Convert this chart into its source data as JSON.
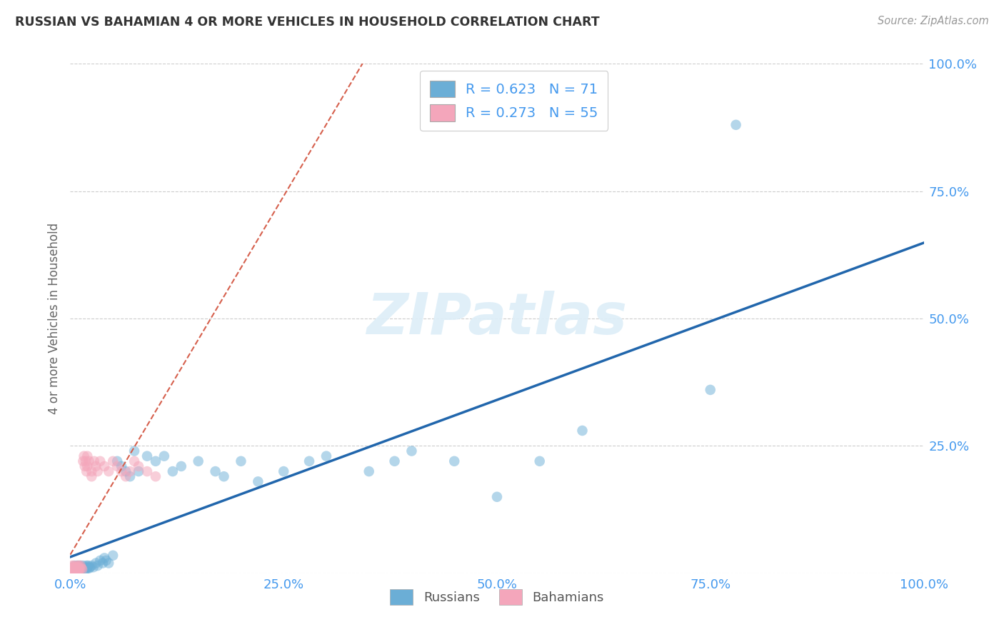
{
  "title": "RUSSIAN VS BAHAMIAN 4 OR MORE VEHICLES IN HOUSEHOLD CORRELATION CHART",
  "source": "Source: ZipAtlas.com",
  "ylabel": "4 or more Vehicles in Household",
  "russian_R": 0.623,
  "russian_N": 71,
  "bahamian_R": 0.273,
  "bahamian_N": 55,
  "russian_color": "#6baed6",
  "bahamian_color": "#f4a6bb",
  "russian_line_color": "#2166ac",
  "bahamian_line_color": "#d6604d",
  "watermark_color": "#ddeef8",
  "grid_color": "#cccccc",
  "tick_color": "#4499ee",
  "title_color": "#333333",
  "source_color": "#999999",
  "ylabel_color": "#666666",
  "xlim": [
    0.0,
    1.0
  ],
  "ylim": [
    0.0,
    1.0
  ],
  "russian_x": [
    0.002,
    0.003,
    0.004,
    0.005,
    0.005,
    0.006,
    0.006,
    0.007,
    0.007,
    0.008,
    0.008,
    0.009,
    0.009,
    0.01,
    0.01,
    0.01,
    0.011,
    0.011,
    0.012,
    0.012,
    0.013,
    0.014,
    0.015,
    0.015,
    0.016,
    0.017,
    0.018,
    0.019,
    0.02,
    0.02,
    0.021,
    0.022,
    0.023,
    0.025,
    0.027,
    0.03,
    0.032,
    0.035,
    0.038,
    0.04,
    0.042,
    0.045,
    0.05,
    0.055,
    0.06,
    0.065,
    0.07,
    0.075,
    0.08,
    0.09,
    0.1,
    0.11,
    0.12,
    0.13,
    0.15,
    0.17,
    0.18,
    0.2,
    0.22,
    0.25,
    0.28,
    0.3,
    0.35,
    0.38,
    0.4,
    0.45,
    0.5,
    0.55,
    0.6,
    0.75,
    0.78
  ],
  "russian_y": [
    0.005,
    0.01,
    0.008,
    0.015,
    0.005,
    0.01,
    0.008,
    0.012,
    0.006,
    0.01,
    0.015,
    0.008,
    0.012,
    0.01,
    0.015,
    0.005,
    0.012,
    0.008,
    0.01,
    0.015,
    0.01,
    0.008,
    0.015,
    0.01,
    0.012,
    0.01,
    0.008,
    0.015,
    0.01,
    0.012,
    0.015,
    0.01,
    0.012,
    0.015,
    0.012,
    0.02,
    0.015,
    0.025,
    0.02,
    0.03,
    0.025,
    0.02,
    0.035,
    0.22,
    0.21,
    0.2,
    0.19,
    0.24,
    0.2,
    0.23,
    0.22,
    0.23,
    0.2,
    0.21,
    0.22,
    0.2,
    0.19,
    0.22,
    0.18,
    0.2,
    0.22,
    0.23,
    0.2,
    0.22,
    0.24,
    0.22,
    0.15,
    0.22,
    0.28,
    0.36,
    0.88
  ],
  "bahamian_x": [
    0.001,
    0.001,
    0.002,
    0.002,
    0.002,
    0.003,
    0.003,
    0.003,
    0.004,
    0.004,
    0.004,
    0.005,
    0.005,
    0.005,
    0.006,
    0.006,
    0.007,
    0.007,
    0.008,
    0.008,
    0.008,
    0.009,
    0.009,
    0.01,
    0.01,
    0.01,
    0.011,
    0.012,
    0.013,
    0.014,
    0.015,
    0.016,
    0.017,
    0.018,
    0.019,
    0.02,
    0.02,
    0.022,
    0.025,
    0.025,
    0.028,
    0.03,
    0.032,
    0.035,
    0.04,
    0.045,
    0.05,
    0.055,
    0.06,
    0.065,
    0.07,
    0.075,
    0.08,
    0.09,
    0.1
  ],
  "bahamian_y": [
    0.005,
    0.01,
    0.008,
    0.015,
    0.005,
    0.01,
    0.008,
    0.012,
    0.005,
    0.01,
    0.015,
    0.008,
    0.012,
    0.005,
    0.01,
    0.008,
    0.012,
    0.005,
    0.01,
    0.015,
    0.005,
    0.008,
    0.012,
    0.01,
    0.015,
    0.005,
    0.008,
    0.015,
    0.01,
    0.008,
    0.22,
    0.23,
    0.21,
    0.22,
    0.2,
    0.23,
    0.21,
    0.22,
    0.19,
    0.2,
    0.22,
    0.21,
    0.2,
    0.22,
    0.21,
    0.2,
    0.22,
    0.21,
    0.2,
    0.19,
    0.2,
    0.22,
    0.21,
    0.2,
    0.19
  ],
  "legend1_label": "R = 0.623   N = 71",
  "legend2_label": "R = 0.273   N = 55",
  "legend_bottom1": "Russians",
  "legend_bottom2": "Bahamians"
}
